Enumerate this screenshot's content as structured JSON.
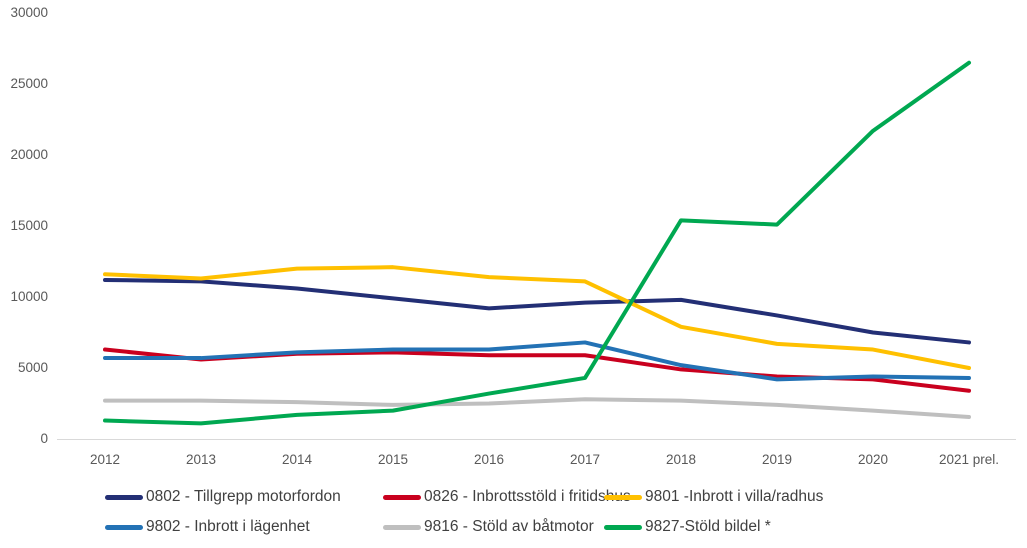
{
  "colors": {
    "axis_line": "#d9d9d9",
    "tick_text": "#595959",
    "legend_text": "#404040",
    "background": "#ffffff"
  },
  "chart_data": {
    "type": "line",
    "title": "",
    "xlabel": "",
    "ylabel": "",
    "ylim": [
      0,
      30000
    ],
    "y_ticks": [
      0,
      5000,
      10000,
      15000,
      20000,
      25000,
      30000
    ],
    "grid": false,
    "legend_position": "bottom",
    "categories": [
      "2012",
      "2013",
      "2014",
      "2015",
      "2016",
      "2017",
      "2018",
      "2019",
      "2020",
      "2021 prel."
    ],
    "series": [
      {
        "id": "0802",
        "name": "0802 - Tillgrepp motorfordon",
        "color": "#232f75",
        "values": [
          11200,
          11100,
          10600,
          9900,
          9200,
          9600,
          9800,
          8700,
          7500,
          6800
        ]
      },
      {
        "id": "0826",
        "name": "0826 - Inbrottsstöld i fritidshus",
        "color": "#c9001e",
        "values": [
          6300,
          5600,
          6000,
          6100,
          5900,
          5900,
          4900,
          4400,
          4200,
          3400
        ]
      },
      {
        "id": "9801",
        "name": "9801 -Inbrott i villa/radhus",
        "color": "#ffc000",
        "values": [
          11600,
          11300,
          12000,
          12100,
          11400,
          11100,
          7900,
          6700,
          6300,
          5000
        ]
      },
      {
        "id": "9802",
        "name": "9802 - Inbrott i lägenhet",
        "color": "#2372b5",
        "values": [
          5700,
          5700,
          6100,
          6300,
          6300,
          6800,
          5200,
          4200,
          4400,
          4300
        ]
      },
      {
        "id": "9816",
        "name": "9816 - Stöld av båtmotor",
        "color": "#bfbfbf",
        "values": [
          2700,
          2700,
          2600,
          2400,
          2500,
          2800,
          2700,
          2400,
          2000,
          1550
        ]
      },
      {
        "id": "9827",
        "name": "9827-Stöld bildel *",
        "color": "#00a851",
        "values": [
          1300,
          1100,
          1700,
          2000,
          3200,
          4300,
          15400,
          15100,
          21700,
          26500
        ]
      }
    ]
  }
}
